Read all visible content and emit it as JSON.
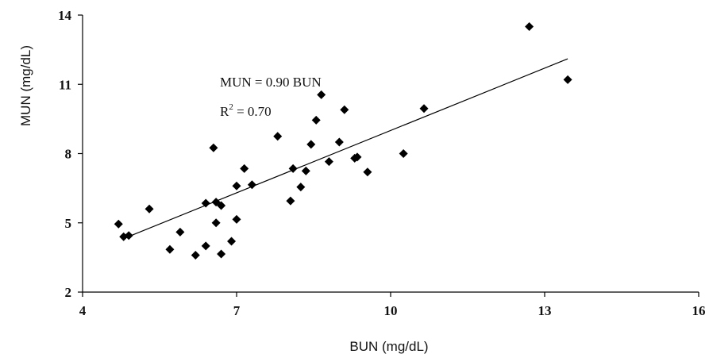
{
  "chart_data": {
    "type": "scatter",
    "xlabel": "BUN (mg/dL)",
    "ylabel": "MUN (mg/dL)",
    "xlim": [
      4,
      16
    ],
    "ylim": [
      2,
      14
    ],
    "xticks": [
      "4",
      "7",
      "10",
      "13",
      "16"
    ],
    "yticks": [
      "2",
      "5",
      "8",
      "11",
      "14"
    ],
    "grid": false,
    "marker": "diamond",
    "marker_color": "#000000",
    "trendline": {
      "slope": 0.9,
      "intercept": 0,
      "x_range": [
        4.8,
        13.45
      ]
    },
    "annotations": {
      "equation": "MUN = 0.90 BUN",
      "r2_prefix": "R",
      "r2_sup": "2",
      "r2_value": " = 0.70"
    },
    "points": [
      {
        "x": 4.7,
        "y": 4.95
      },
      {
        "x": 4.8,
        "y": 4.4
      },
      {
        "x": 4.9,
        "y": 4.45
      },
      {
        "x": 5.3,
        "y": 5.6
      },
      {
        "x": 5.7,
        "y": 3.85
      },
      {
        "x": 5.9,
        "y": 4.6
      },
      {
        "x": 6.2,
        "y": 3.6
      },
      {
        "x": 6.4,
        "y": 4.0
      },
      {
        "x": 6.4,
        "y": 5.85
      },
      {
        "x": 6.55,
        "y": 8.25
      },
      {
        "x": 6.6,
        "y": 5.9
      },
      {
        "x": 6.6,
        "y": 5.0
      },
      {
        "x": 6.7,
        "y": 5.75
      },
      {
        "x": 6.7,
        "y": 3.65
      },
      {
        "x": 6.9,
        "y": 4.2
      },
      {
        "x": 7.0,
        "y": 5.15
      },
      {
        "x": 7.0,
        "y": 6.6
      },
      {
        "x": 7.15,
        "y": 7.35
      },
      {
        "x": 7.3,
        "y": 6.65
      },
      {
        "x": 7.8,
        "y": 8.75
      },
      {
        "x": 8.05,
        "y": 5.95
      },
      {
        "x": 8.1,
        "y": 7.35
      },
      {
        "x": 8.25,
        "y": 6.55
      },
      {
        "x": 8.35,
        "y": 7.25
      },
      {
        "x": 8.45,
        "y": 8.4
      },
      {
        "x": 8.55,
        "y": 9.45
      },
      {
        "x": 8.65,
        "y": 10.55
      },
      {
        "x": 8.8,
        "y": 7.65
      },
      {
        "x": 9.0,
        "y": 8.5
      },
      {
        "x": 9.1,
        "y": 9.9
      },
      {
        "x": 9.3,
        "y": 7.8
      },
      {
        "x": 9.35,
        "y": 7.85
      },
      {
        "x": 9.55,
        "y": 7.2
      },
      {
        "x": 10.25,
        "y": 8.0
      },
      {
        "x": 10.65,
        "y": 9.95
      },
      {
        "x": 12.7,
        "y": 13.5
      },
      {
        "x": 13.45,
        "y": 11.2
      }
    ]
  }
}
